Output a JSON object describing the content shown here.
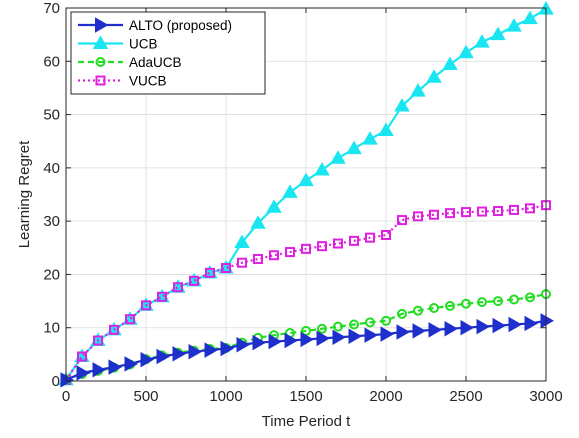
{
  "chart_data": {
    "type": "line",
    "xlabel": "Time Period t",
    "ylabel": "Learning Regret",
    "xlim": [
      0,
      3000
    ],
    "ylim": [
      0,
      70
    ],
    "xticks": [
      0,
      500,
      1000,
      1500,
      2000,
      2500,
      3000
    ],
    "yticks": [
      0,
      10,
      20,
      30,
      40,
      50,
      60,
      70
    ],
    "grid": true,
    "legend_position": "top-left",
    "x": [
      0,
      100,
      200,
      300,
      400,
      500,
      600,
      700,
      800,
      900,
      1000,
      1100,
      1200,
      1300,
      1400,
      1500,
      1600,
      1700,
      1800,
      1900,
      2000,
      2100,
      2200,
      2300,
      2400,
      2500,
      2600,
      2700,
      2800,
      2900,
      3000
    ],
    "series": [
      {
        "name": "ALTO (proposed)",
        "color": "#1f2fcc",
        "marker": "triangle-right",
        "dash": "solid",
        "values": [
          0.2,
          1.5,
          2.1,
          2.6,
          3.2,
          4.0,
          4.6,
          5.1,
          5.5,
          5.8,
          6.1,
          6.8,
          7.2,
          7.4,
          7.6,
          7.8,
          8.0,
          8.2,
          8.4,
          8.6,
          8.8,
          9.2,
          9.4,
          9.6,
          9.8,
          10.0,
          10.2,
          10.4,
          10.6,
          10.8,
          11.3
        ]
      },
      {
        "name": "UCB",
        "color": "#19e6f0",
        "marker": "triangle-up",
        "dash": "solid",
        "values": [
          0.2,
          4.6,
          7.6,
          9.6,
          11.6,
          14.2,
          15.8,
          17.6,
          18.8,
          20.3,
          21.2,
          26.0,
          29.6,
          32.6,
          35.4,
          37.6,
          39.6,
          41.8,
          43.6,
          45.4,
          47.0,
          51.6,
          54.4,
          57.0,
          59.4,
          61.6,
          63.6,
          65.0,
          66.6,
          68.0,
          69.8
        ]
      },
      {
        "name": "AdaUCB",
        "color": "#22dd22",
        "marker": "circle",
        "dash": "dash",
        "values": [
          0.2,
          1.3,
          1.9,
          2.5,
          3.1,
          4.1,
          4.8,
          5.3,
          5.7,
          6.0,
          6.2,
          7.2,
          8.1,
          8.6,
          9.0,
          9.4,
          9.8,
          10.2,
          10.6,
          11.0,
          11.3,
          12.6,
          13.2,
          13.7,
          14.1,
          14.5,
          14.8,
          15.0,
          15.3,
          15.7,
          16.3
        ]
      },
      {
        "name": "VUCB",
        "color": "#e020e0",
        "marker": "square",
        "dash": "dot",
        "values": [
          0.2,
          4.6,
          7.6,
          9.6,
          11.6,
          14.2,
          15.8,
          17.6,
          18.8,
          20.3,
          21.2,
          22.2,
          22.9,
          23.6,
          24.2,
          24.8,
          25.3,
          25.8,
          26.3,
          26.9,
          27.4,
          30.2,
          30.9,
          31.2,
          31.5,
          31.7,
          31.8,
          31.9,
          32.1,
          32.4,
          33.0
        ]
      }
    ]
  }
}
